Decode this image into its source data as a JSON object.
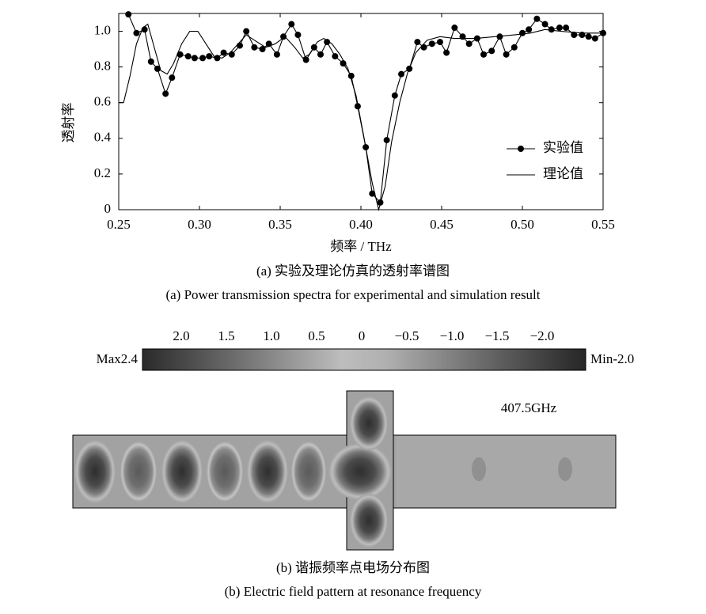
{
  "chart_data": {
    "type": "line",
    "ylabel": "透射率",
    "xlabel": "频率 / THz",
    "xlim": [
      0.25,
      0.55
    ],
    "ylim": [
      0,
      1.1
    ],
    "xticks": [
      0.25,
      {
        "value": 0.3,
        "label": "0.30"
      },
      0.35,
      {
        "value": 0.4,
        "label": "0.40"
      },
      0.45,
      {
        "value": 0.5,
        "label": "0.50"
      },
      0.55
    ],
    "yticks": [
      0,
      0.2,
      0.4,
      0.6,
      0.8,
      {
        "value": 1,
        "label": "1.0"
      }
    ],
    "grid": false,
    "legend": "lower right",
    "series": [
      {
        "name": "实验值",
        "color": "#000000",
        "marker": true,
        "x": [
          0.256,
          0.261,
          0.266,
          0.27,
          0.274,
          0.279,
          0.283,
          0.288,
          0.293,
          0.297,
          0.302,
          0.306,
          0.311,
          0.315,
          0.32,
          0.325,
          0.329,
          0.334,
          0.339,
          0.343,
          0.348,
          0.352,
          0.357,
          0.361,
          0.366,
          0.371,
          0.375,
          0.379,
          0.384,
          0.389,
          0.394,
          0.398,
          0.403,
          0.407,
          0.412,
          0.416,
          0.421,
          0.425,
          0.43,
          0.435,
          0.439,
          0.444,
          0.449,
          0.453,
          0.458,
          0.463,
          0.467,
          0.472,
          0.476,
          0.481,
          0.486,
          0.49,
          0.495,
          0.5,
          0.504,
          0.509,
          0.514,
          0.518,
          0.523,
          0.527,
          0.532,
          0.537,
          0.541,
          0.545,
          0.55
        ],
        "values": [
          1.095,
          0.99,
          1.01,
          0.83,
          0.79,
          0.65,
          0.74,
          0.87,
          0.86,
          0.85,
          0.85,
          0.86,
          0.85,
          0.88,
          0.87,
          0.92,
          1.0,
          0.91,
          0.9,
          0.93,
          0.87,
          0.97,
          1.04,
          0.98,
          0.84,
          0.91,
          0.87,
          0.94,
          0.86,
          0.82,
          0.75,
          0.58,
          0.35,
          0.09,
          0.04,
          0.39,
          0.64,
          0.76,
          0.79,
          0.94,
          0.91,
          0.93,
          0.94,
          0.88,
          1.02,
          0.97,
          0.93,
          0.96,
          0.87,
          0.89,
          0.97,
          0.87,
          0.91,
          0.99,
          1.01,
          1.07,
          1.04,
          1.01,
          1.02,
          1.02,
          0.98,
          0.98,
          0.97,
          0.96,
          0.99
        ]
      },
      {
        "name": "理论值",
        "color": "#000000",
        "marker": false,
        "x": [
          0.25,
          0.253,
          0.257,
          0.261,
          0.265,
          0.268,
          0.272,
          0.276,
          0.28,
          0.284,
          0.289,
          0.294,
          0.299,
          0.304,
          0.309,
          0.314,
          0.319,
          0.324,
          0.329,
          0.334,
          0.341,
          0.347,
          0.353,
          0.359,
          0.364,
          0.368,
          0.373,
          0.377,
          0.382,
          0.387,
          0.392,
          0.397,
          0.402,
          0.407,
          0.411,
          0.415,
          0.419,
          0.424,
          0.429,
          0.434,
          0.441,
          0.449,
          0.458,
          0.471,
          0.483,
          0.495,
          0.505,
          0.514,
          0.524,
          0.537,
          0.55
        ],
        "values": [
          0.6,
          0.6,
          0.75,
          0.93,
          1.02,
          1.04,
          0.91,
          0.78,
          0.76,
          0.82,
          0.93,
          1.0,
          1.0,
          0.93,
          0.86,
          0.85,
          0.88,
          0.93,
          0.98,
          0.95,
          0.91,
          0.93,
          0.97,
          0.91,
          0.85,
          0.87,
          0.94,
          0.96,
          0.93,
          0.87,
          0.79,
          0.64,
          0.4,
          0.15,
          0.0,
          0.13,
          0.38,
          0.6,
          0.77,
          0.88,
          0.95,
          0.97,
          0.96,
          0.96,
          0.97,
          0.98,
          0.99,
          1.01,
          1.0,
          0.99,
          0.99
        ]
      }
    ]
  },
  "captions": {
    "a_zh": "(a) 实验及理论仿真的透射率谱图",
    "a_en": "(a) Power transmission spectra for experimental and simulation result",
    "b_zh": "(b) 谐振频率点电场分布图",
    "b_en": "(b) Electric field pattern at resonance frequency"
  },
  "colorbar": {
    "ticks": [
      "2.0",
      "1.5",
      "1.0",
      "0.5",
      "0",
      "−0.5",
      "−1.0",
      "−1.5",
      "−2.0"
    ],
    "max_label": "Max2.4",
    "min_label": "Min-2.0"
  },
  "field": {
    "frequency_label": "407.5GHz"
  }
}
